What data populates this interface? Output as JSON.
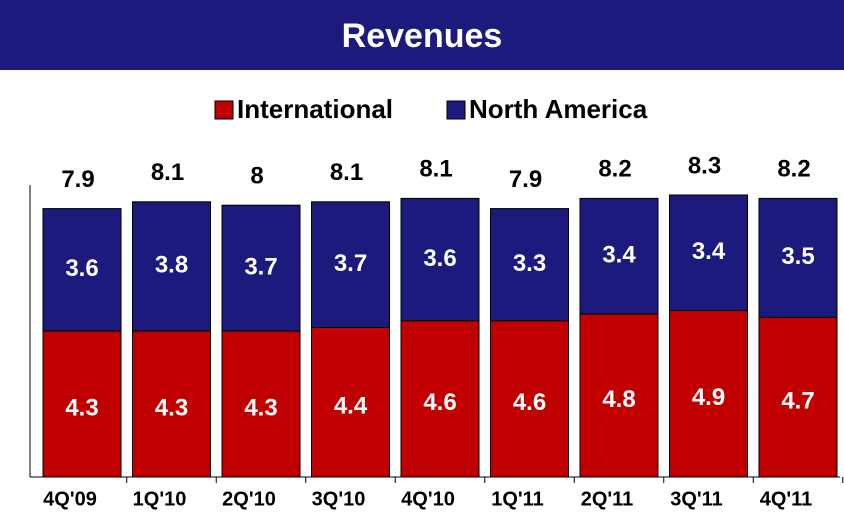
{
  "chart_data": {
    "type": "stacked_bar",
    "title": "Revenues",
    "categories": [
      "4Q'09",
      "1Q'10",
      "2Q'10",
      "3Q'10",
      "4Q'10",
      "1Q'11",
      "2Q'11",
      "3Q'11",
      "4Q'11"
    ],
    "series": [
      {
        "name": "International",
        "color": "#c00000",
        "values": [
          4.3,
          4.3,
          4.3,
          4.4,
          4.6,
          4.6,
          4.8,
          4.9,
          4.7
        ]
      },
      {
        "name": "North America",
        "color": "#1c1a7c",
        "values": [
          3.6,
          3.8,
          3.7,
          3.7,
          3.6,
          3.3,
          3.4,
          3.4,
          3.5
        ]
      }
    ],
    "totals": [
      7.9,
      8.1,
      8.0,
      8.1,
      8.1,
      7.9,
      8.2,
      8.3,
      8.2
    ],
    "banner_color": "#1c1a7c"
  }
}
